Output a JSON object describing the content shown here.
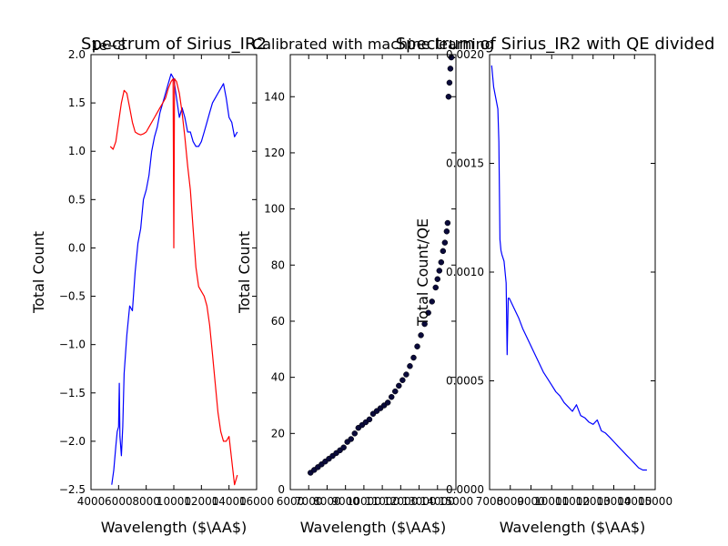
{
  "chart_data": [
    {
      "type": "line",
      "title": "Spectrum of Sirius_IR2",
      "xlabel": "Wavelength ($\\AA$)",
      "ylabel": "Total Count",
      "offset_label": "1e−8",
      "xlim": [
        4000,
        16000
      ],
      "ylim": [
        -2.5,
        2.0
      ],
      "x_ticks": [
        {
          "v": 4000,
          "label": "4000"
        },
        {
          "v": 6000,
          "label": "6000"
        },
        {
          "v": 8000,
          "label": "8000"
        },
        {
          "v": 10000,
          "label": "10000"
        },
        {
          "v": 12000,
          "label": "12000"
        },
        {
          "v": 14000,
          "label": "14000"
        },
        {
          "v": 16000,
          "label": "16000"
        }
      ],
      "y_ticks": [
        {
          "v": -2.5,
          "label": "−2.5"
        },
        {
          "v": -2.0,
          "label": "−2.0"
        },
        {
          "v": -1.5,
          "label": "−1.5"
        },
        {
          "v": -1.0,
          "label": "−1.0"
        },
        {
          "v": -0.5,
          "label": "−0.5"
        },
        {
          "v": 0.0,
          "label": "0.0"
        },
        {
          "v": 0.5,
          "label": "0.5"
        },
        {
          "v": 1.0,
          "label": "1.0"
        },
        {
          "v": 1.5,
          "label": "1.5"
        },
        {
          "v": 2.0,
          "label": "2.0"
        }
      ],
      "series": [
        {
          "color": "#0000ff",
          "style": "line",
          "x": [
            5500,
            5650,
            5800,
            5900,
            6000,
            6050,
            6100,
            6200,
            6300,
            6400,
            6600,
            6800,
            7000,
            7200,
            7400,
            7600,
            7800,
            8000,
            8200,
            8400,
            8600,
            8800,
            9000,
            9200,
            9400,
            9600,
            9800,
            10000,
            10200,
            10400,
            10600,
            10800,
            11000,
            11200,
            11400,
            11600,
            11800,
            12000,
            12200,
            12400,
            12600,
            12800,
            13000,
            13200,
            13400,
            13600,
            13800,
            14000,
            14200,
            14400,
            14600
          ],
          "y": [
            -2.45,
            -2.3,
            -2.05,
            -1.9,
            -1.85,
            -1.4,
            -1.95,
            -2.15,
            -1.85,
            -1.3,
            -0.9,
            -0.6,
            -0.65,
            -0.25,
            0.05,
            0.2,
            0.5,
            0.6,
            0.75,
            1.0,
            1.15,
            1.25,
            1.4,
            1.5,
            1.6,
            1.7,
            1.8,
            1.75,
            1.55,
            1.35,
            1.45,
            1.35,
            1.2,
            1.2,
            1.1,
            1.05,
            1.05,
            1.1,
            1.2,
            1.3,
            1.4,
            1.5,
            1.55,
            1.6,
            1.65,
            1.7,
            1.55,
            1.35,
            1.3,
            1.15,
            1.2
          ]
        },
        {
          "color": "#ff0000",
          "style": "line",
          "x": [
            5400,
            5600,
            5800,
            6000,
            6200,
            6400,
            6600,
            6800,
            7000,
            7200,
            7400,
            7600,
            7800,
            8000,
            8200,
            8400,
            8600,
            8800,
            9000,
            9200,
            9400,
            9600,
            9800,
            9950,
            10000,
            10050,
            10200,
            10400,
            10600,
            10800,
            11000,
            11200,
            11400,
            11600,
            11800,
            12000,
            12200,
            12400,
            12600,
            12800,
            13000,
            13200,
            13400,
            13600,
            13800,
            14000,
            14200,
            14400,
            14600
          ],
          "y": [
            1.05,
            1.02,
            1.1,
            1.3,
            1.5,
            1.63,
            1.6,
            1.45,
            1.3,
            1.2,
            1.18,
            1.17,
            1.18,
            1.2,
            1.25,
            1.3,
            1.35,
            1.4,
            1.45,
            1.5,
            1.55,
            1.65,
            1.72,
            1.75,
            0.0,
            1.75,
            1.72,
            1.6,
            1.4,
            1.15,
            0.85,
            0.6,
            0.2,
            -0.2,
            -0.4,
            -0.45,
            -0.5,
            -0.6,
            -0.8,
            -1.1,
            -1.4,
            -1.7,
            -1.9,
            -2.0,
            -2.0,
            -1.95,
            -2.2,
            -2.45,
            -2.35
          ]
        }
      ]
    },
    {
      "type": "scatter",
      "title": "Calibrated with machine learning",
      "xlabel": "Wavelength ($\\AA$)",
      "ylabel": "Total Count",
      "xlim": [
        6000,
        15000
      ],
      "ylim": [
        0,
        155
      ],
      "x_ticks": [
        {
          "v": 6000,
          "label": "6000"
        },
        {
          "v": 7000,
          "label": "7000"
        },
        {
          "v": 8000,
          "label": "8000"
        },
        {
          "v": 9000,
          "label": "9000"
        },
        {
          "v": 10000,
          "label": "10000"
        },
        {
          "v": 11000,
          "label": "11000"
        },
        {
          "v": 12000,
          "label": "12000"
        },
        {
          "v": 13000,
          "label": "13000"
        },
        {
          "v": 14000,
          "label": "14000"
        },
        {
          "v": 15000,
          "label": "15000"
        }
      ],
      "y_ticks": [
        {
          "v": 0,
          "label": "0"
        },
        {
          "v": 20,
          "label": "20"
        },
        {
          "v": 40,
          "label": "40"
        },
        {
          "v": 60,
          "label": "60"
        },
        {
          "v": 80,
          "label": "80"
        },
        {
          "v": 100,
          "label": "100"
        },
        {
          "v": 120,
          "label": "120"
        },
        {
          "v": 140,
          "label": "140"
        }
      ],
      "series": [
        {
          "color": "#0a0a3a",
          "style": "scatter",
          "x": [
            7100,
            7300,
            7500,
            7700,
            7900,
            8100,
            8300,
            8500,
            8700,
            8900,
            9100,
            9300,
            9500,
            9700,
            9900,
            10100,
            10300,
            10500,
            10700,
            10900,
            11100,
            11300,
            11500,
            11700,
            11900,
            12100,
            12300,
            12500,
            12700,
            12900,
            13100,
            13300,
            13500,
            13700,
            13900,
            14000,
            14100,
            14200,
            14300,
            14400,
            14500,
            14550,
            14600,
            14650,
            14700,
            14750
          ],
          "y": [
            6,
            7,
            8,
            9,
            10,
            11,
            12,
            13,
            14,
            15,
            17,
            18,
            20,
            22,
            23,
            24,
            25,
            27,
            28,
            29,
            30,
            31,
            33,
            35,
            37,
            39,
            41,
            44,
            47,
            51,
            55,
            59,
            63,
            67,
            72,
            75,
            78,
            81,
            85,
            88,
            92,
            95,
            140,
            145,
            150,
            154
          ]
        }
      ]
    },
    {
      "type": "line",
      "title": "Spectrum of Sirius_IR2 with QE divided",
      "xlabel": "Wavelength ($\\AA$)",
      "ylabel": "Total Count/QE",
      "xlim": [
        7000,
        15000
      ],
      "ylim": [
        0.0,
        0.002
      ],
      "x_ticks": [
        {
          "v": 7000,
          "label": "7000"
        },
        {
          "v": 8000,
          "label": "8000"
        },
        {
          "v": 9000,
          "label": "9000"
        },
        {
          "v": 10000,
          "label": "10000"
        },
        {
          "v": 11000,
          "label": "11000"
        },
        {
          "v": 12000,
          "label": "12000"
        },
        {
          "v": 13000,
          "label": "13000"
        },
        {
          "v": 14000,
          "label": "14000"
        },
        {
          "v": 15000,
          "label": "15000"
        }
      ],
      "y_ticks": [
        {
          "v": 0.0,
          "label": "0.0000"
        },
        {
          "v": 0.0005,
          "label": "0.0005"
        },
        {
          "v": 0.001,
          "label": "0.0010"
        },
        {
          "v": 0.0015,
          "label": "0.0015"
        },
        {
          "v": 0.002,
          "label": "0.0020"
        }
      ],
      "series": [
        {
          "color": "#0000ff",
          "style": "line",
          "x": [
            7100,
            7150,
            7200,
            7300,
            7400,
            7450,
            7500,
            7550,
            7600,
            7700,
            7800,
            7850,
            7900,
            7950,
            8000,
            8200,
            8400,
            8600,
            8800,
            9000,
            9200,
            9400,
            9600,
            9800,
            10000,
            10200,
            10400,
            10600,
            10800,
            11000,
            11200,
            11400,
            11600,
            11800,
            12000,
            12200,
            12400,
            12600,
            12800,
            13000,
            13200,
            13400,
            13600,
            13800,
            14000,
            14200,
            14400,
            14600
          ],
          "y": [
            0.00195,
            0.0019,
            0.00185,
            0.0018,
            0.00175,
            0.0016,
            0.00115,
            0.0011,
            0.00108,
            0.00105,
            0.00095,
            0.00062,
            0.00088,
            0.00088,
            0.00087,
            0.00083,
            0.00079,
            0.00074,
            0.0007,
            0.00066,
            0.00062,
            0.00058,
            0.00054,
            0.00051,
            0.00048,
            0.00045,
            0.00043,
            0.0004,
            0.00038,
            0.00036,
            0.00039,
            0.00034,
            0.00033,
            0.00031,
            0.0003,
            0.00032,
            0.00027,
            0.00026,
            0.00024,
            0.00022,
            0.0002,
            0.00018,
            0.00016,
            0.00014,
            0.00012,
            0.0001,
            9e-05,
            9e-05
          ]
        }
      ]
    }
  ]
}
